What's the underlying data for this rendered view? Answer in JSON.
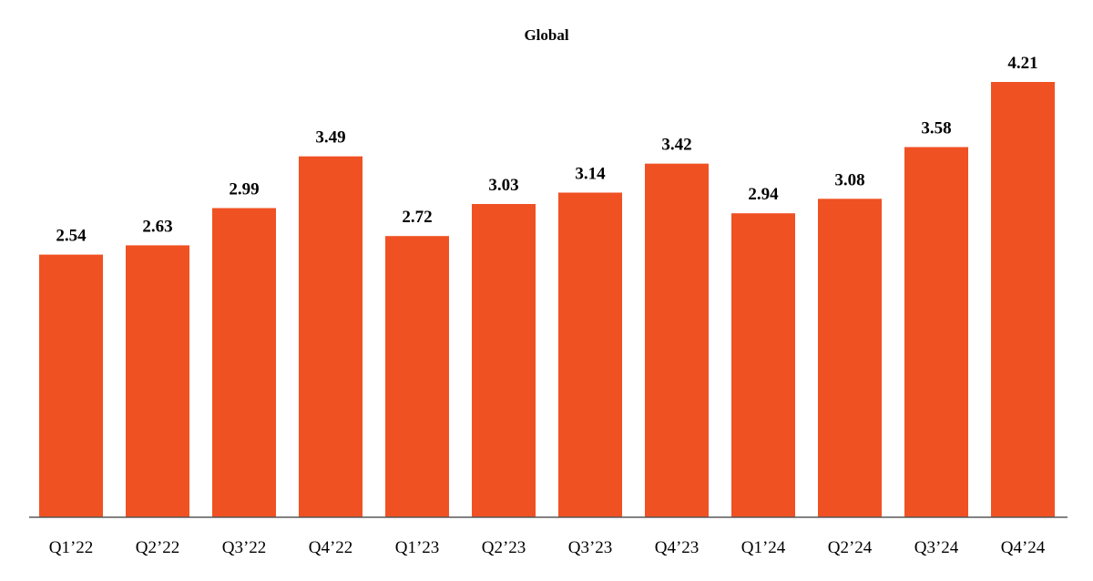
{
  "chart_data": {
    "type": "bar",
    "title": "Global",
    "xlabel": "",
    "ylabel": "",
    "categories": [
      "Q1’22",
      "Q2’22",
      "Q3’22",
      "Q4’22",
      "Q1’23",
      "Q2’23",
      "Q3’23",
      "Q4’23",
      "Q1’24",
      "Q2’24",
      "Q3’24",
      "Q4’24"
    ],
    "values": [
      2.54,
      2.63,
      2.99,
      3.49,
      2.72,
      3.03,
      3.14,
      3.42,
      2.94,
      3.08,
      3.58,
      4.21
    ],
    "data_labels": [
      "2.54",
      "2.63",
      "2.99",
      "3.49",
      "2.72",
      "3.03",
      "3.14",
      "3.42",
      "2.94",
      "3.08",
      "3.58",
      "4.21"
    ],
    "ylim": [
      0,
      4.21
    ],
    "grid": false,
    "legend": "none",
    "bar_color": "#F05123",
    "axis_color": "#595959"
  }
}
